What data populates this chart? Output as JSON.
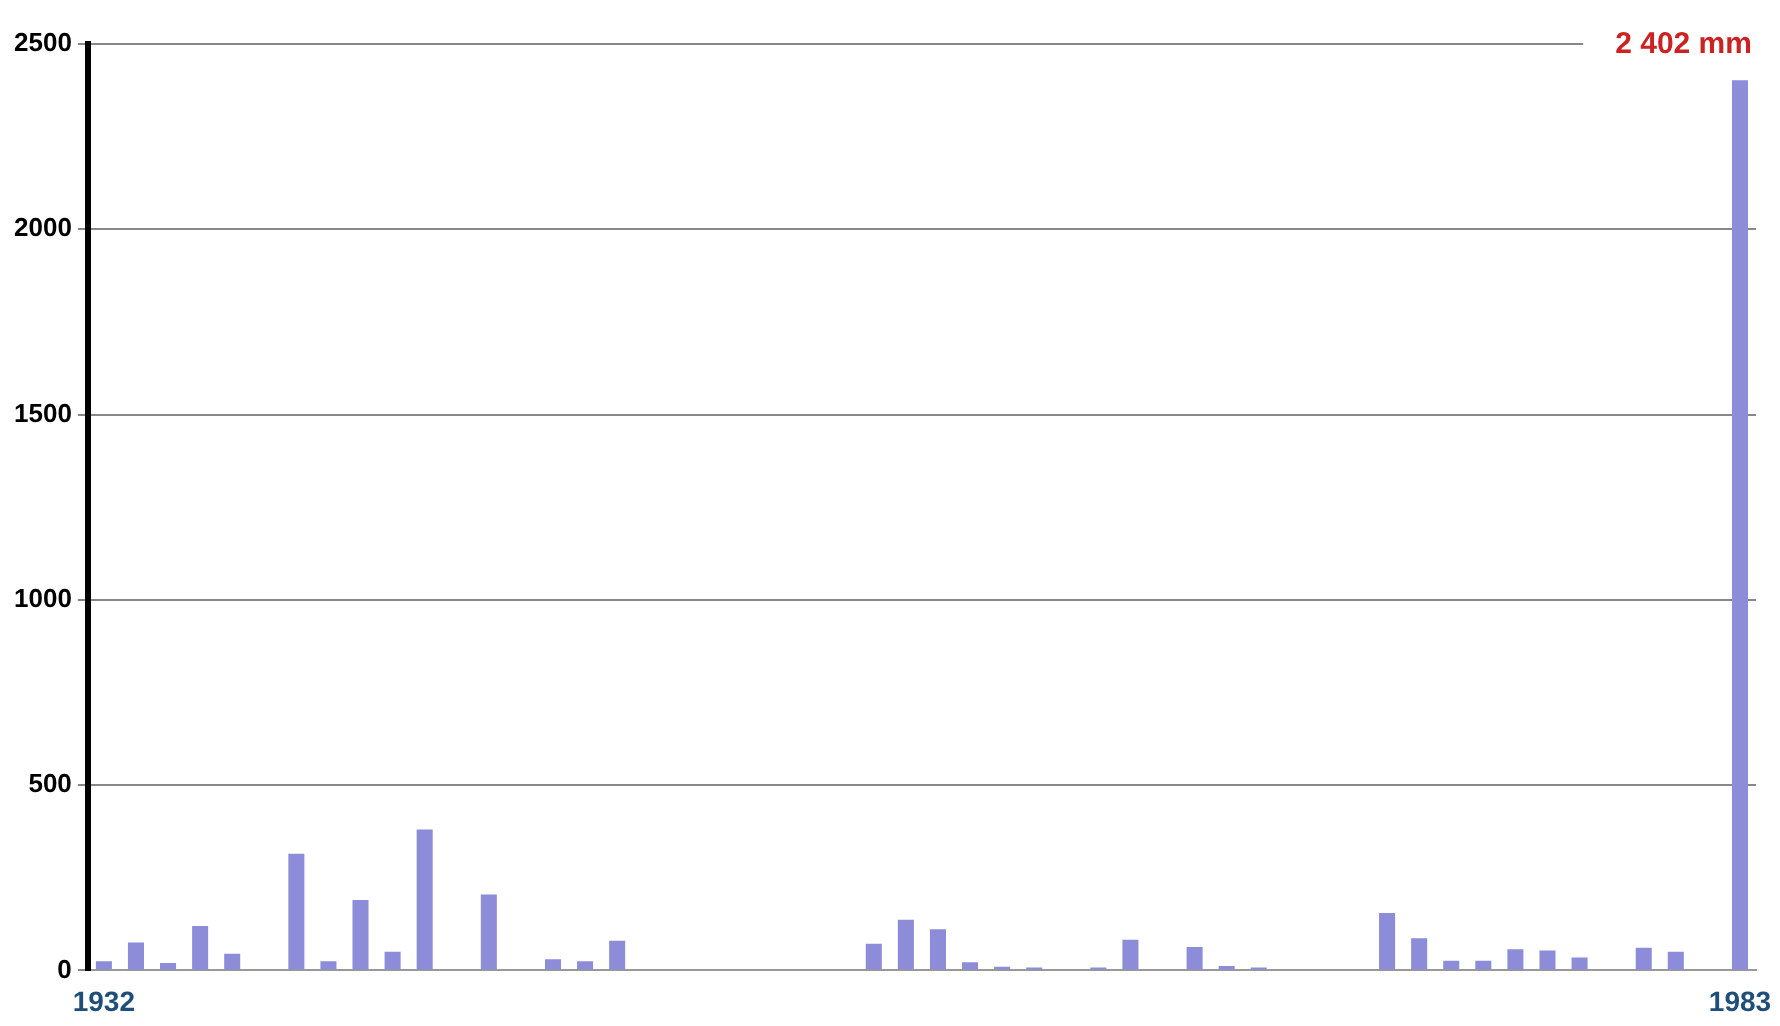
{
  "chart_data": {
    "type": "bar",
    "categories": [
      "1932",
      null,
      null,
      null,
      null,
      null,
      null,
      null,
      null,
      null,
      null,
      null,
      null,
      null,
      null,
      null,
      null,
      null,
      null,
      null,
      null,
      null,
      null,
      null,
      null,
      null,
      null,
      null,
      null,
      null,
      null,
      null,
      null,
      null,
      null,
      null,
      null,
      null,
      null,
      null,
      null,
      null,
      null,
      null,
      null,
      null,
      null,
      null,
      null,
      null,
      null,
      "1983"
    ],
    "values": [
      25,
      75,
      20,
      120,
      45,
      0,
      315,
      25,
      190,
      50,
      380,
      0,
      205,
      0,
      30,
      25,
      80,
      0,
      0,
      0,
      0,
      0,
      0,
      0,
      72,
      137,
      111,
      22,
      10,
      8,
      0,
      8,
      83,
      0,
      63,
      12,
      8,
      0,
      0,
      0,
      155,
      87,
      26,
      26,
      57,
      54,
      35,
      0,
      61,
      50,
      0,
      2402
    ],
    "color": "#8c8cd8",
    "ylim": [
      0,
      2500
    ],
    "yticks": [
      0,
      500,
      1000,
      1500,
      2000,
      2500
    ],
    "grid": "y",
    "annotations": [
      {
        "text": "2 402 mm",
        "x": "1983",
        "y": 2402
      }
    ]
  }
}
